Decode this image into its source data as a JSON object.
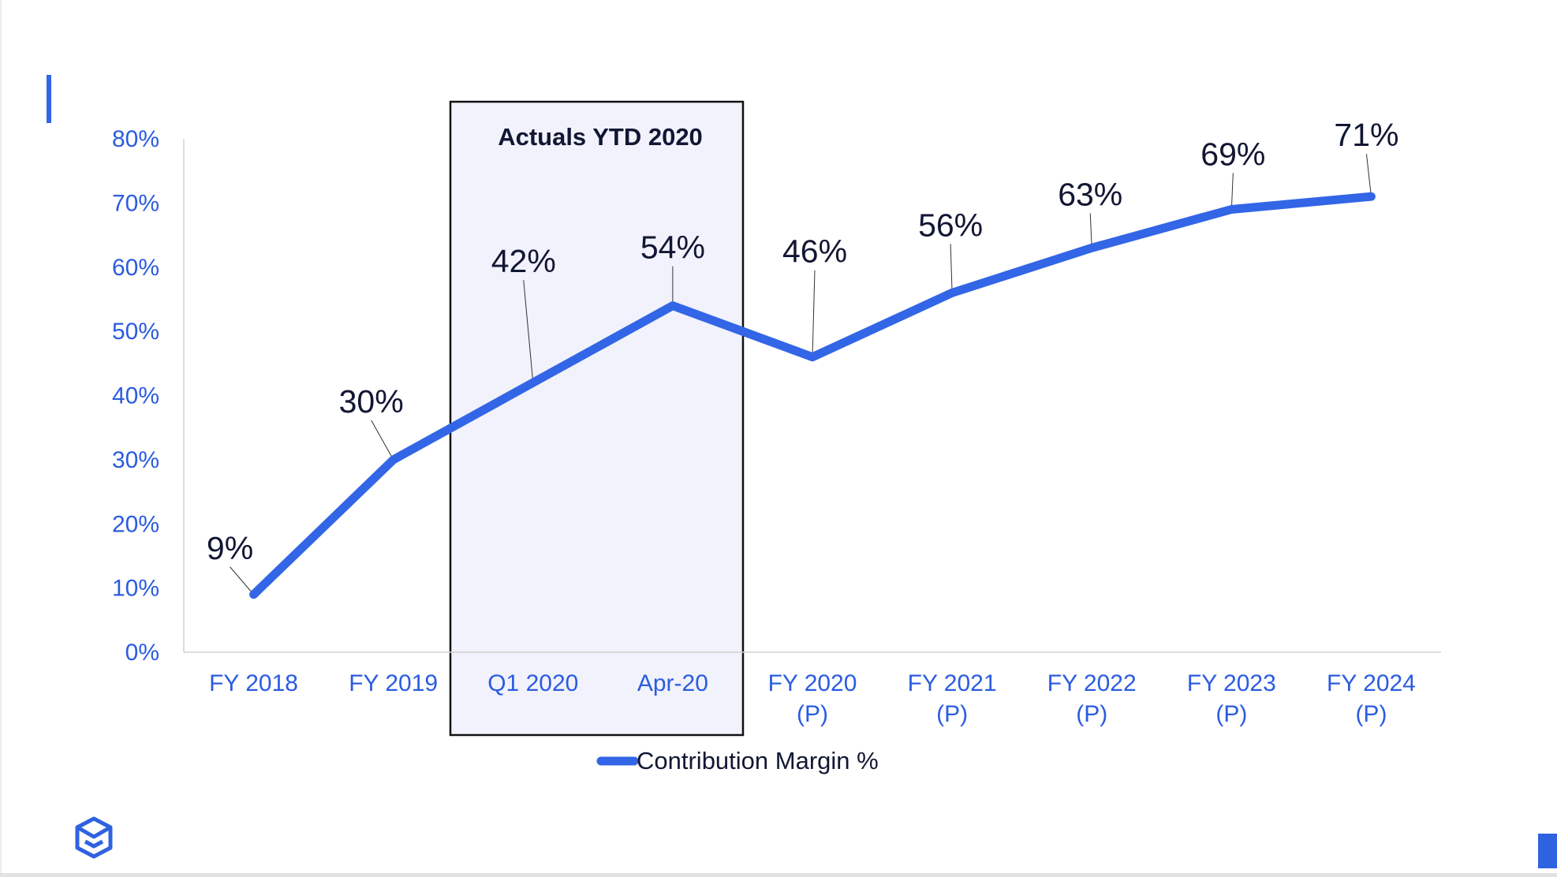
{
  "colors": {
    "series": "#3366e6",
    "tick_text": "#2b5ce0",
    "label_text": "#111633",
    "highlight_fill": "#f1f2fb",
    "highlight_border": "#111111"
  },
  "icons": {
    "logo": "cube-logo-icon"
  },
  "chart_data": {
    "type": "line",
    "title": "",
    "xlabel": "",
    "ylabel": "",
    "ylim": [
      0,
      80
    ],
    "yticks": [
      "0%",
      "10%",
      "20%",
      "30%",
      "40%",
      "50%",
      "60%",
      "70%",
      "80%"
    ],
    "grid": false,
    "legend_position": "bottom",
    "categories": [
      [
        "FY 2018"
      ],
      [
        "FY 2019"
      ],
      [
        "Q1 2020"
      ],
      [
        "Apr-20"
      ],
      [
        "FY 2020",
        "(P)"
      ],
      [
        "FY 2021",
        "(P)"
      ],
      [
        "FY 2022",
        "(P)"
      ],
      [
        "FY 2023",
        "(P)"
      ],
      [
        "FY 2024",
        "(P)"
      ]
    ],
    "series": [
      {
        "name": "Contribution Margin %",
        "values": [
          9,
          30,
          42,
          54,
          46,
          56,
          63,
          69,
          71
        ],
        "labels": [
          "9%",
          "30%",
          "42%",
          "54%",
          "46%",
          "56%",
          "63%",
          "69%",
          "71%"
        ]
      }
    ],
    "highlight": {
      "label": "Actuals YTD 2020",
      "categories": [
        "Q1 2020",
        "Apr-20"
      ]
    }
  }
}
